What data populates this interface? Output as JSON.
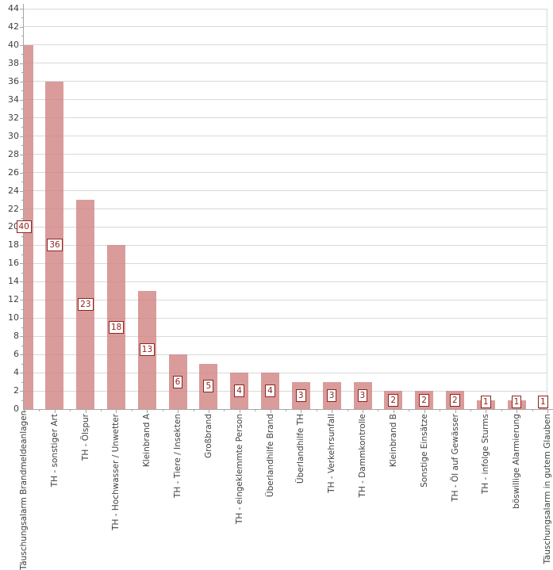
{
  "chart_data": {
    "type": "bar",
    "title": "",
    "categories": [
      "Täuschungsalarm Brandmeldeanlagen",
      "TH - sonstiger Art",
      "TH - Ölspur",
      "TH - Hochwasser / Unwetter",
      "Kleinbrand A",
      "TH - Tiere / Insekten",
      "Großbrand",
      "TH - eingeklemmte Person",
      "Überlandhilfe Brand",
      "Überlandhilfe TH",
      "TH - Verkehrsunfall",
      "TH - Dammkontrolle",
      "Kleinbrand B",
      "Sonstige Einsätze",
      "TH - Öl auf Gewässer",
      "TH - infolge Sturms",
      "böswillige Alarmierung",
      "Täuschungsalarm in gutem Glauben"
    ],
    "values": [
      40,
      36,
      23,
      18,
      13,
      6,
      5,
      4,
      4,
      3,
      3,
      3,
      2,
      2,
      2,
      1,
      1,
      1
    ],
    "data_labels": [
      40,
      36,
      23,
      18,
      13,
      6,
      5,
      4,
      4,
      3,
      3,
      3,
      2,
      2,
      2,
      1,
      1,
      1
    ],
    "xlabel": "",
    "ylabel": "",
    "ylim": [
      0,
      44
    ],
    "y_tick_step": 2,
    "y_minor_tick_step": 1,
    "grid": true,
    "legend": "none",
    "x_labels_rotated_degrees": 90,
    "colors": {
      "bar_fill": "rgba(208,131,130,0.8)",
      "bar_fill_hex": "#D99C9A",
      "gridline": "#D9D9D9",
      "axis_line": "#A6A6A6",
      "axis_text": "#3F3F3F",
      "data_label_text": "#8F2421",
      "data_label_border": "#8F2421",
      "data_label_bg": "#FFFFFF",
      "background": "#FFFFFF"
    }
  }
}
